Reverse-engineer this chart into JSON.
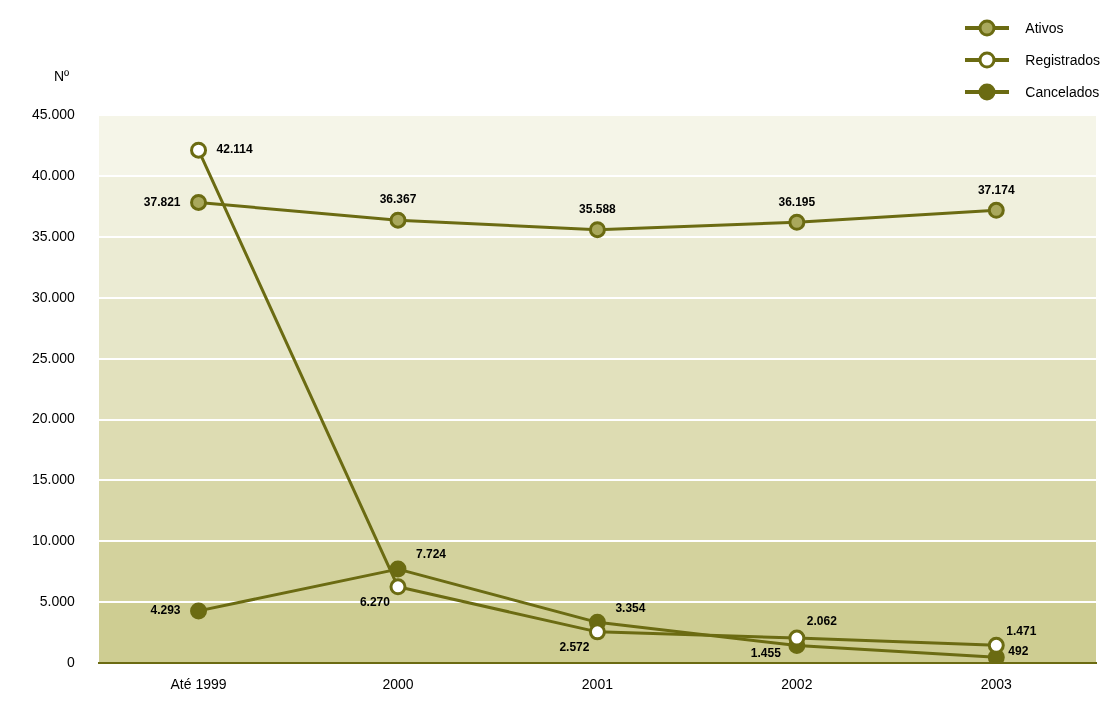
{
  "chart_data": {
    "type": "line",
    "ylabel": "Nº",
    "categories": [
      "Até 1999",
      "2000",
      "2001",
      "2002",
      "2003"
    ],
    "series": [
      {
        "name": "Ativos",
        "color": "#a9a85c",
        "values": [
          37821,
          36367,
          35588,
          36195,
          37174
        ],
        "value_labels": [
          "37.821",
          "36.367",
          "35.588",
          "36.195",
          "37.174"
        ]
      },
      {
        "name": "Registrados",
        "color": "#ffffff",
        "values": [
          42114,
          6270,
          2572,
          2062,
          1471
        ],
        "value_labels": [
          "42.114",
          "6.270",
          "2.572",
          "2.062",
          "1.471"
        ]
      },
      {
        "name": "Cancelados",
        "color": "#6b6b12",
        "values": [
          4293,
          7724,
          3354,
          1455,
          492
        ],
        "value_labels": [
          "4.293",
          "7.724",
          "3.354",
          "1.455",
          "492"
        ]
      }
    ],
    "ylim": [
      0,
      45000
    ],
    "yticks": [
      0,
      {
        "value": 5000,
        "label": "5.000"
      },
      {
        "value": 10000,
        "label": "10.000"
      },
      {
        "value": 15000,
        "label": "15.000"
      },
      {
        "value": 20000,
        "label": "20.000"
      },
      {
        "value": 25000,
        "label": "25.000"
      },
      {
        "value": 30000,
        "label": "30.000"
      },
      {
        "value": 35000,
        "label": "35.000"
      },
      {
        "value": 40000,
        "label": "40.000"
      },
      {
        "value": 45000,
        "label": "45.000"
      }
    ],
    "grid": "y",
    "legend": "top right",
    "marker": "circle",
    "line_style": "solid"
  }
}
